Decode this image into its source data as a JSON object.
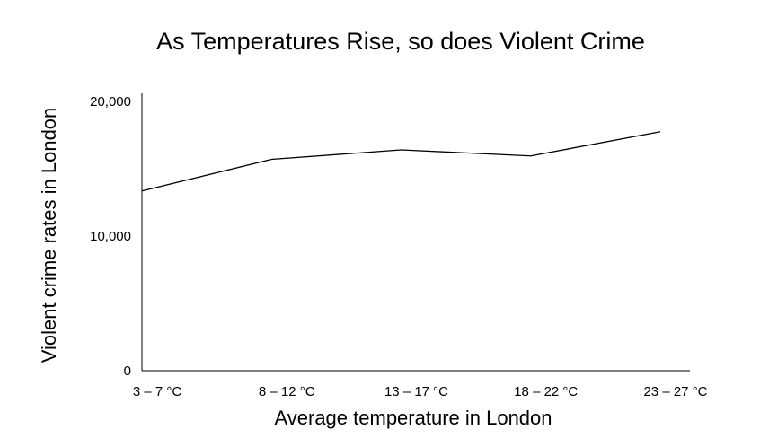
{
  "chart_data": {
    "type": "line",
    "title": "As Temperatures Rise, so does Violent Crime",
    "xlabel": "Average temperature in London",
    "ylabel": "Violent crime rates in London",
    "categories": [
      "3 – 7 °C",
      "8 – 12 °C",
      "13 – 17 °C",
      "18 – 22 °C",
      "23 – 27 °C"
    ],
    "series": [
      {
        "values": [
          13350,
          15700,
          16400,
          15950,
          17750
        ]
      }
    ],
    "yticks": [
      {
        "value": 0,
        "label": "0"
      },
      {
        "value": 10000,
        "label": "10,000"
      },
      {
        "value": 20000,
        "label": "20,000"
      }
    ],
    "ylim": [
      0,
      20000
    ],
    "grid": false,
    "line_color": "#000000"
  }
}
